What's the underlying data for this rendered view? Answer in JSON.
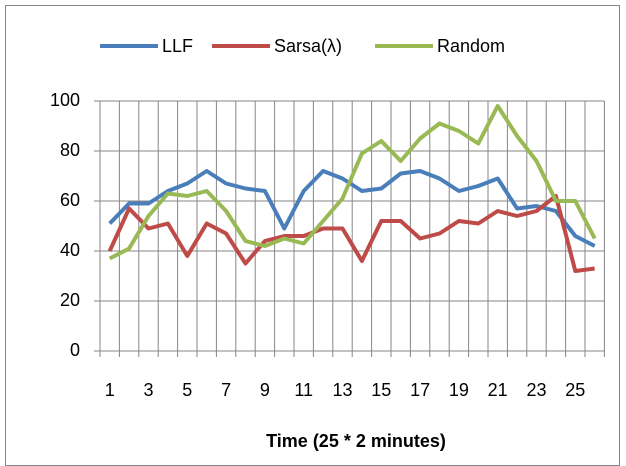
{
  "chart_data": {
    "type": "line",
    "x_label": "Time (25 * 2 minutes)",
    "categories": [
      1,
      null,
      3,
      null,
      5,
      null,
      7,
      null,
      9,
      null,
      11,
      null,
      13,
      null,
      15,
      null,
      17,
      null,
      19,
      null,
      21,
      null,
      23,
      null,
      25,
      null
    ],
    "series": [
      {
        "name": "LLF",
        "color": "#4a7ebb",
        "values": [
          51,
          59,
          59,
          64,
          67,
          72,
          67,
          65,
          64,
          49,
          64,
          72,
          69,
          64,
          65,
          71,
          72,
          69,
          64,
          66,
          69,
          57,
          58,
          56,
          46,
          42
        ]
      },
      {
        "name": "Sarsa(λ)",
        "color": "#be4b48",
        "values": [
          40,
          57,
          49,
          51,
          38,
          51,
          47,
          35,
          44,
          46,
          46,
          49,
          49,
          36,
          52,
          52,
          45,
          47,
          52,
          51,
          56,
          54,
          56,
          62,
          32,
          33
        ]
      },
      {
        "name": "Random",
        "color": "#98b954",
        "values": [
          37,
          41,
          54,
          63,
          62,
          64,
          56,
          44,
          42,
          45,
          43,
          52,
          61,
          79,
          84,
          76,
          85,
          91,
          88,
          83,
          98,
          86,
          76,
          60,
          60,
          45
        ]
      }
    ],
    "ylim": [
      0,
      100
    ],
    "yticks": [
      0,
      20,
      40,
      60,
      80,
      100
    ],
    "grid": true,
    "legend": "top"
  }
}
